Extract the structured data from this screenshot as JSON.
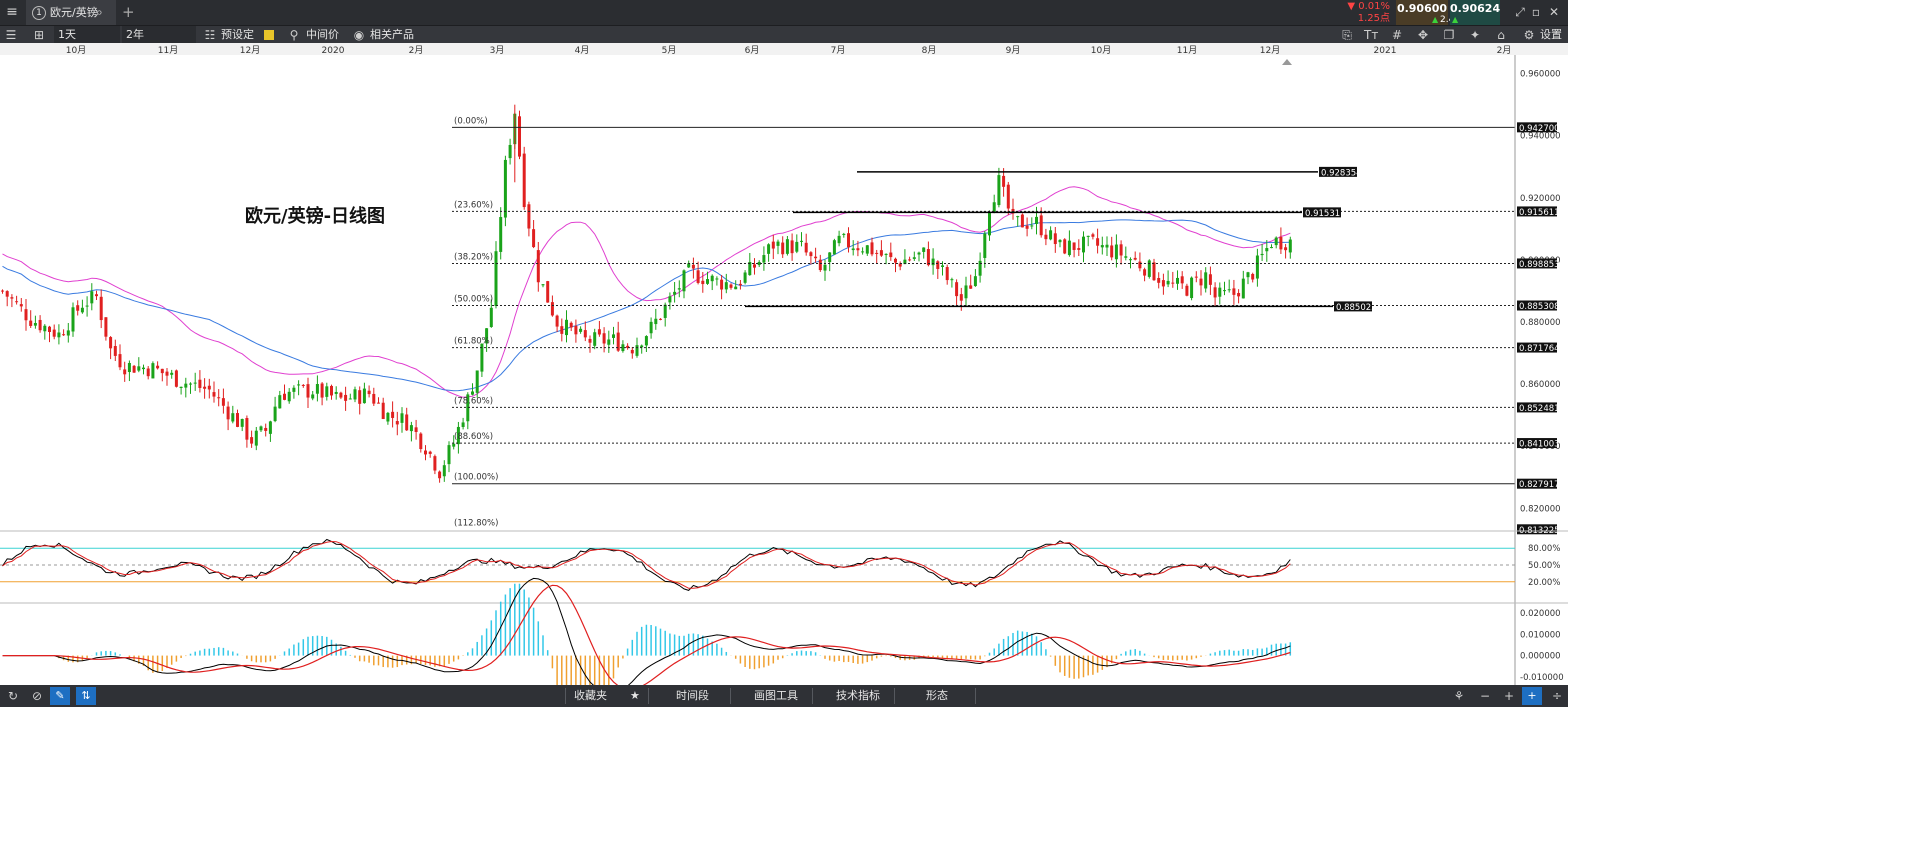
{
  "tab": {
    "title": "欧元/英镑",
    "number": "1"
  },
  "quote": {
    "change_pct": "▼ 0.01%",
    "change_pts": "1.25点",
    "bid": "0.90600",
    "ask": "0.90624",
    "spread": "2.4"
  },
  "toolbar": {
    "interval": "1天",
    "range": "2年",
    "preset": "预设定",
    "mid_price": "中间价",
    "related": "相关产品",
    "settings": "设置"
  },
  "bottom": {
    "favorites": "收藏夹",
    "timeframe": "时间段",
    "drawing_tools": "画图工具",
    "indicators": "技术指标",
    "patterns": "形态"
  },
  "colors": {
    "up": "#1aa31a",
    "down": "#e02020",
    "ma_fast": "#e040d0",
    "ma_slow": "#3a7be0",
    "stoch_k": "#000000",
    "stoch_d": "#e02020",
    "stoch_high": "#3ad4d4",
    "stoch_low": "#f0a030",
    "macd_hist_up": "#33c8e8",
    "macd_hist_down": "#f0a030"
  },
  "chart_data": {
    "type": "candlestick",
    "title": "欧元/英镑-日线图",
    "x_tick_labels": [
      "10月",
      "11月",
      "12月",
      "2020",
      "2月",
      "3月",
      "4月",
      "5月",
      "6月",
      "7月",
      "8月",
      "9月",
      "10月",
      "11月",
      "12月",
      "2021",
      "2月"
    ],
    "y_tick_labels": [
      "0.960000",
      "0.940000",
      "0.920000",
      "0.900000",
      "0.880000",
      "0.860000",
      "0.840000",
      "0.820000"
    ],
    "ylim": [
      0.813,
      0.966
    ],
    "price_path": [
      [
        0,
        0.89
      ],
      [
        6,
        0.881
      ],
      [
        12,
        0.876
      ],
      [
        17,
        0.886
      ],
      [
        20,
        0.888
      ],
      [
        23,
        0.871
      ],
      [
        26,
        0.866
      ],
      [
        32,
        0.865
      ],
      [
        38,
        0.861
      ],
      [
        44,
        0.858
      ],
      [
        50,
        0.848
      ],
      [
        53,
        0.842
      ],
      [
        56,
        0.845
      ],
      [
        59,
        0.857
      ],
      [
        66,
        0.858
      ],
      [
        72,
        0.855
      ],
      [
        78,
        0.857
      ],
      [
        82,
        0.85
      ],
      [
        86,
        0.848
      ],
      [
        90,
        0.84
      ],
      [
        93,
        0.832
      ],
      [
        96,
        0.841
      ],
      [
        98,
        0.85
      ],
      [
        101,
        0.865
      ],
      [
        104,
        0.885
      ],
      [
        107,
        0.93
      ],
      [
        109,
        0.948
      ],
      [
        111,
        0.92
      ],
      [
        114,
        0.895
      ],
      [
        118,
        0.88
      ],
      [
        124,
        0.874
      ],
      [
        130,
        0.874
      ],
      [
        134,
        0.872
      ],
      [
        138,
        0.878
      ],
      [
        142,
        0.887
      ],
      [
        146,
        0.896
      ],
      [
        152,
        0.893
      ],
      [
        156,
        0.892
      ],
      [
        160,
        0.898
      ],
      [
        164,
        0.905
      ],
      [
        170,
        0.904
      ],
      [
        174,
        0.896
      ],
      [
        178,
        0.906
      ],
      [
        184,
        0.904
      ],
      [
        190,
        0.899
      ],
      [
        196,
        0.902
      ],
      [
        200,
        0.896
      ],
      [
        204,
        0.887
      ],
      [
        207,
        0.895
      ],
      [
        210,
        0.918
      ],
      [
        212,
        0.925
      ],
      [
        215,
        0.912
      ],
      [
        220,
        0.912
      ],
      [
        225,
        0.904
      ],
      [
        232,
        0.905
      ],
      [
        238,
        0.902
      ],
      [
        244,
        0.897
      ],
      [
        248,
        0.892
      ],
      [
        252,
        0.891
      ],
      [
        256,
        0.895
      ],
      [
        258,
        0.888
      ],
      [
        262,
        0.889
      ],
      [
        266,
        0.896
      ],
      [
        270,
        0.906
      ],
      [
        274,
        0.906
      ]
    ],
    "horizontal_levels": [
      {
        "price": 0.9427,
        "label": "0.942700"
      },
      {
        "price": 0.915611,
        "label": "0.915611"
      },
      {
        "price": 0.898853,
        "label": "0.898853"
      },
      {
        "price": 0.885308,
        "label": "0.885308"
      },
      {
        "price": 0.871764,
        "label": "0.871764"
      },
      {
        "price": 0.852481,
        "label": "0.852481"
      },
      {
        "price": 0.841003,
        "label": "0.841003"
      },
      {
        "price": 0.827917,
        "label": "0.827917"
      },
      {
        "price": 0.813225,
        "label": "0.813225"
      }
    ],
    "drawn_levels": [
      {
        "price": 0.928354,
        "label": "0.928354"
      },
      {
        "price": 0.915311,
        "label": "0.915311"
      },
      {
        "price": 0.885023,
        "label": "0.885023"
      }
    ],
    "fibonacci": [
      {
        "label": "(0.00%)",
        "price": 0.9427
      },
      {
        "label": "(23.60%)",
        "price": 0.915611
      },
      {
        "label": "(38.20%)",
        "price": 0.898853
      },
      {
        "label": "(50.00%)",
        "price": 0.885308
      },
      {
        "label": "(61.80%)",
        "price": 0.871764
      },
      {
        "label": "(78.60%)",
        "price": 0.852481
      },
      {
        "label": "(88.60%)",
        "price": 0.841003
      },
      {
        "label": "(100.00%)",
        "price": 0.827917
      },
      {
        "label": "(112.80%)",
        "price": 0.813225
      }
    ],
    "stochastic": {
      "levels": [
        80,
        50,
        20
      ],
      "labels": [
        "80.00%",
        "50.00%",
        "20.00%"
      ]
    },
    "macd": {
      "labels": [
        "0.020000",
        "0.010000",
        "0.000000",
        "-0.010000"
      ],
      "ylim": [
        -0.012,
        0.022
      ]
    }
  }
}
